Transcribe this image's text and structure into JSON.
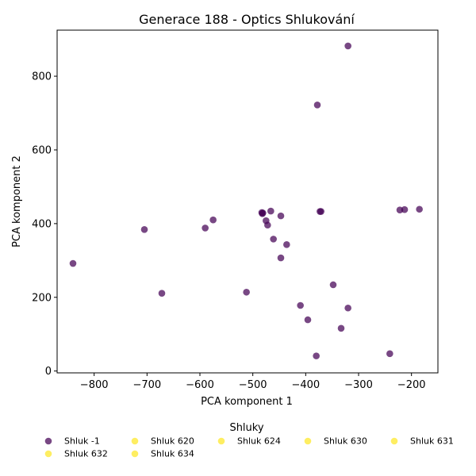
{
  "chart_data": {
    "type": "scatter",
    "title": "Generace 188 - Optics Shlukování",
    "xlabel": "PCA komponent 1",
    "ylabel": "PCA komponent 2",
    "xlim": [
      -870,
      -150
    ],
    "ylim": [
      -5,
      925
    ],
    "xticks": [
      -800,
      -700,
      -600,
      -500,
      -400,
      -300,
      -200
    ],
    "yticks": [
      0,
      200,
      400,
      600,
      800
    ],
    "xtick_labels": [
      "−800",
      "−700",
      "−600",
      "−500",
      "−400",
      "−300",
      "−200"
    ],
    "ytick_labels": [
      "0",
      "200",
      "400",
      "600",
      "800"
    ],
    "grid": false,
    "legend": {
      "title": "Shluky",
      "placement": "bottom",
      "entries": [
        {
          "label": "Shluk -1",
          "color": "#440154"
        },
        {
          "label": "Shluk 620",
          "color": "#fde725"
        },
        {
          "label": "Shluk 624",
          "color": "#fde725"
        },
        {
          "label": "Shluk 630",
          "color": "#fde725"
        },
        {
          "label": "Shluk 631",
          "color": "#fde725"
        },
        {
          "label": "Shluk 632",
          "color": "#fde725"
        },
        {
          "label": "Shluk 634",
          "color": "#fde725"
        }
      ]
    },
    "series": [
      {
        "name": "Shluk -1",
        "color": "#440154",
        "points": [
          {
            "x": -320,
            "y": 882
          },
          {
            "x": -378,
            "y": 722
          },
          {
            "x": -840,
            "y": 292
          },
          {
            "x": -705,
            "y": 384
          },
          {
            "x": -672,
            "y": 211
          },
          {
            "x": -590,
            "y": 388
          },
          {
            "x": -575,
            "y": 410
          },
          {
            "x": -512,
            "y": 214
          },
          {
            "x": -483,
            "y": 430
          },
          {
            "x": -482,
            "y": 427
          },
          {
            "x": -481,
            "y": 429
          },
          {
            "x": -475,
            "y": 408
          },
          {
            "x": -472,
            "y": 396
          },
          {
            "x": -466,
            "y": 434
          },
          {
            "x": -461,
            "y": 358
          },
          {
            "x": -447,
            "y": 421
          },
          {
            "x": -447,
            "y": 307
          },
          {
            "x": -436,
            "y": 343
          },
          {
            "x": -373,
            "y": 433
          },
          {
            "x": -371,
            "y": 433
          },
          {
            "x": -410,
            "y": 178
          },
          {
            "x": -396,
            "y": 139
          },
          {
            "x": -380,
            "y": 41
          },
          {
            "x": -348,
            "y": 234
          },
          {
            "x": -333,
            "y": 116
          },
          {
            "x": -320,
            "y": 171
          },
          {
            "x": -241,
            "y": 47
          },
          {
            "x": -222,
            "y": 437
          },
          {
            "x": -213,
            "y": 438
          },
          {
            "x": -185,
            "y": 439
          }
        ]
      }
    ]
  }
}
